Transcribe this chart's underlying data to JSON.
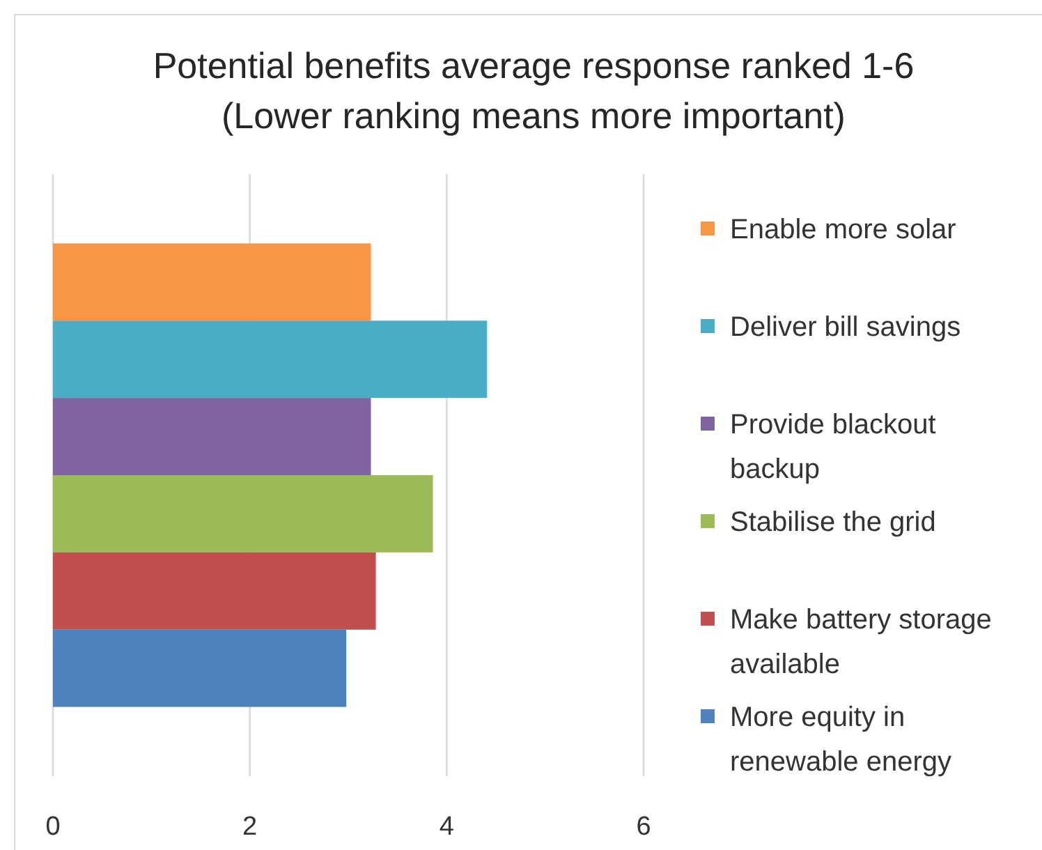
{
  "chart_data": {
    "type": "bar",
    "orientation": "horizontal",
    "title": "Potential benefits average response ranked 1-6 (Lower ranking means more important)",
    "categories": [
      null
    ],
    "series": [
      {
        "name": "Enable more solar",
        "color": "#f79646",
        "values": [
          3.23
        ]
      },
      {
        "name": "Deliver bill savings",
        "color": "#4bacc6",
        "values": [
          4.41
        ]
      },
      {
        "name": "Provide blackout backup",
        "color": "#8064a2",
        "values": [
          3.23
        ]
      },
      {
        "name": "Stabilise the grid",
        "color": "#9bbb59",
        "values": [
          3.86
        ]
      },
      {
        "name": "Make battery storage available",
        "color": "#c0504d",
        "values": [
          3.28
        ]
      },
      {
        "name": "More equity in renewable energy",
        "color": "#4f81bd",
        "values": [
          2.98
        ]
      }
    ],
    "xlim": [
      0,
      6
    ],
    "xticks": [
      0,
      2,
      4,
      6
    ],
    "grid": "x",
    "legend": "right"
  }
}
